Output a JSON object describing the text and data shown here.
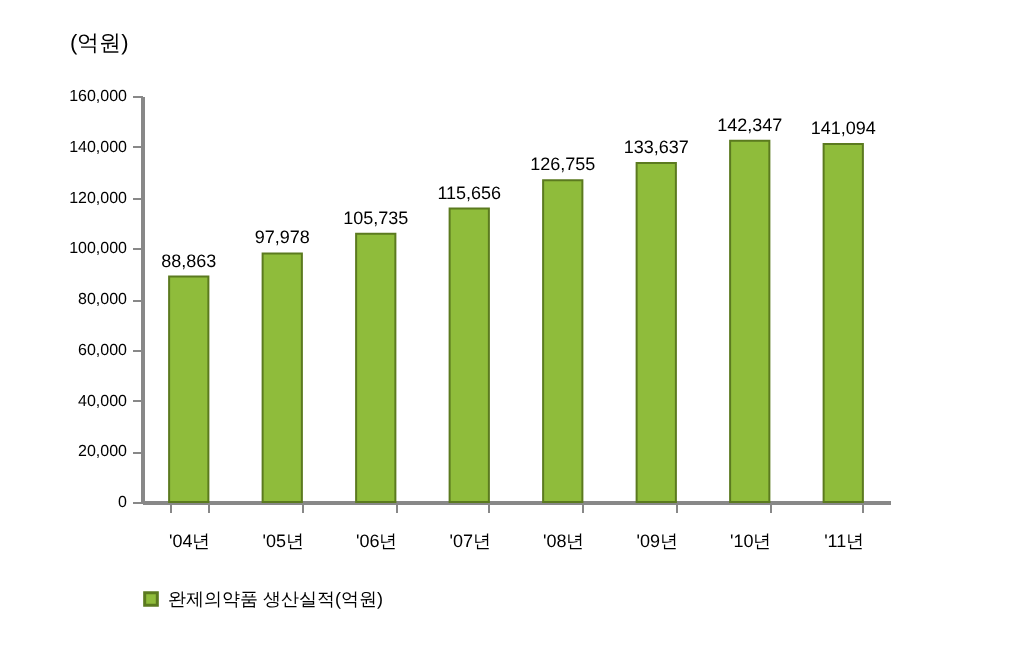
{
  "chart_data": {
    "type": "bar",
    "ylabel": "(억원)",
    "categories": [
      "'04년",
      "'05년",
      "'06년",
      "'07년",
      "'08년",
      "'09년",
      "'10년",
      "'11년"
    ],
    "series": [
      {
        "name": "완제의약품 생산실적(억원)",
        "color": "#8fbc3b",
        "values": [
          88863,
          97978,
          105735,
          115656,
          126755,
          133637,
          142347,
          141094
        ],
        "value_labels": [
          "88,863",
          "97,978",
          "105,735",
          "115,656",
          "126,755",
          "133,637",
          "142,347",
          "141,094"
        ]
      }
    ],
    "ylim": [
      0,
      160000
    ],
    "yticks": [
      0,
      {
        "value": 20000,
        "label": "20,000"
      },
      {
        "value": 40000,
        "label": "40,000"
      },
      {
        "value": 60000,
        "label": "60,000"
      },
      {
        "value": 80000,
        "label": "80,000"
      },
      {
        "value": 100000,
        "label": "100,000"
      },
      {
        "value": 120000,
        "label": "120,000"
      },
      {
        "value": 140000,
        "label": "140,000"
      },
      {
        "value": 160000,
        "label": "160,000"
      }
    ],
    "legend": "bottom"
  }
}
